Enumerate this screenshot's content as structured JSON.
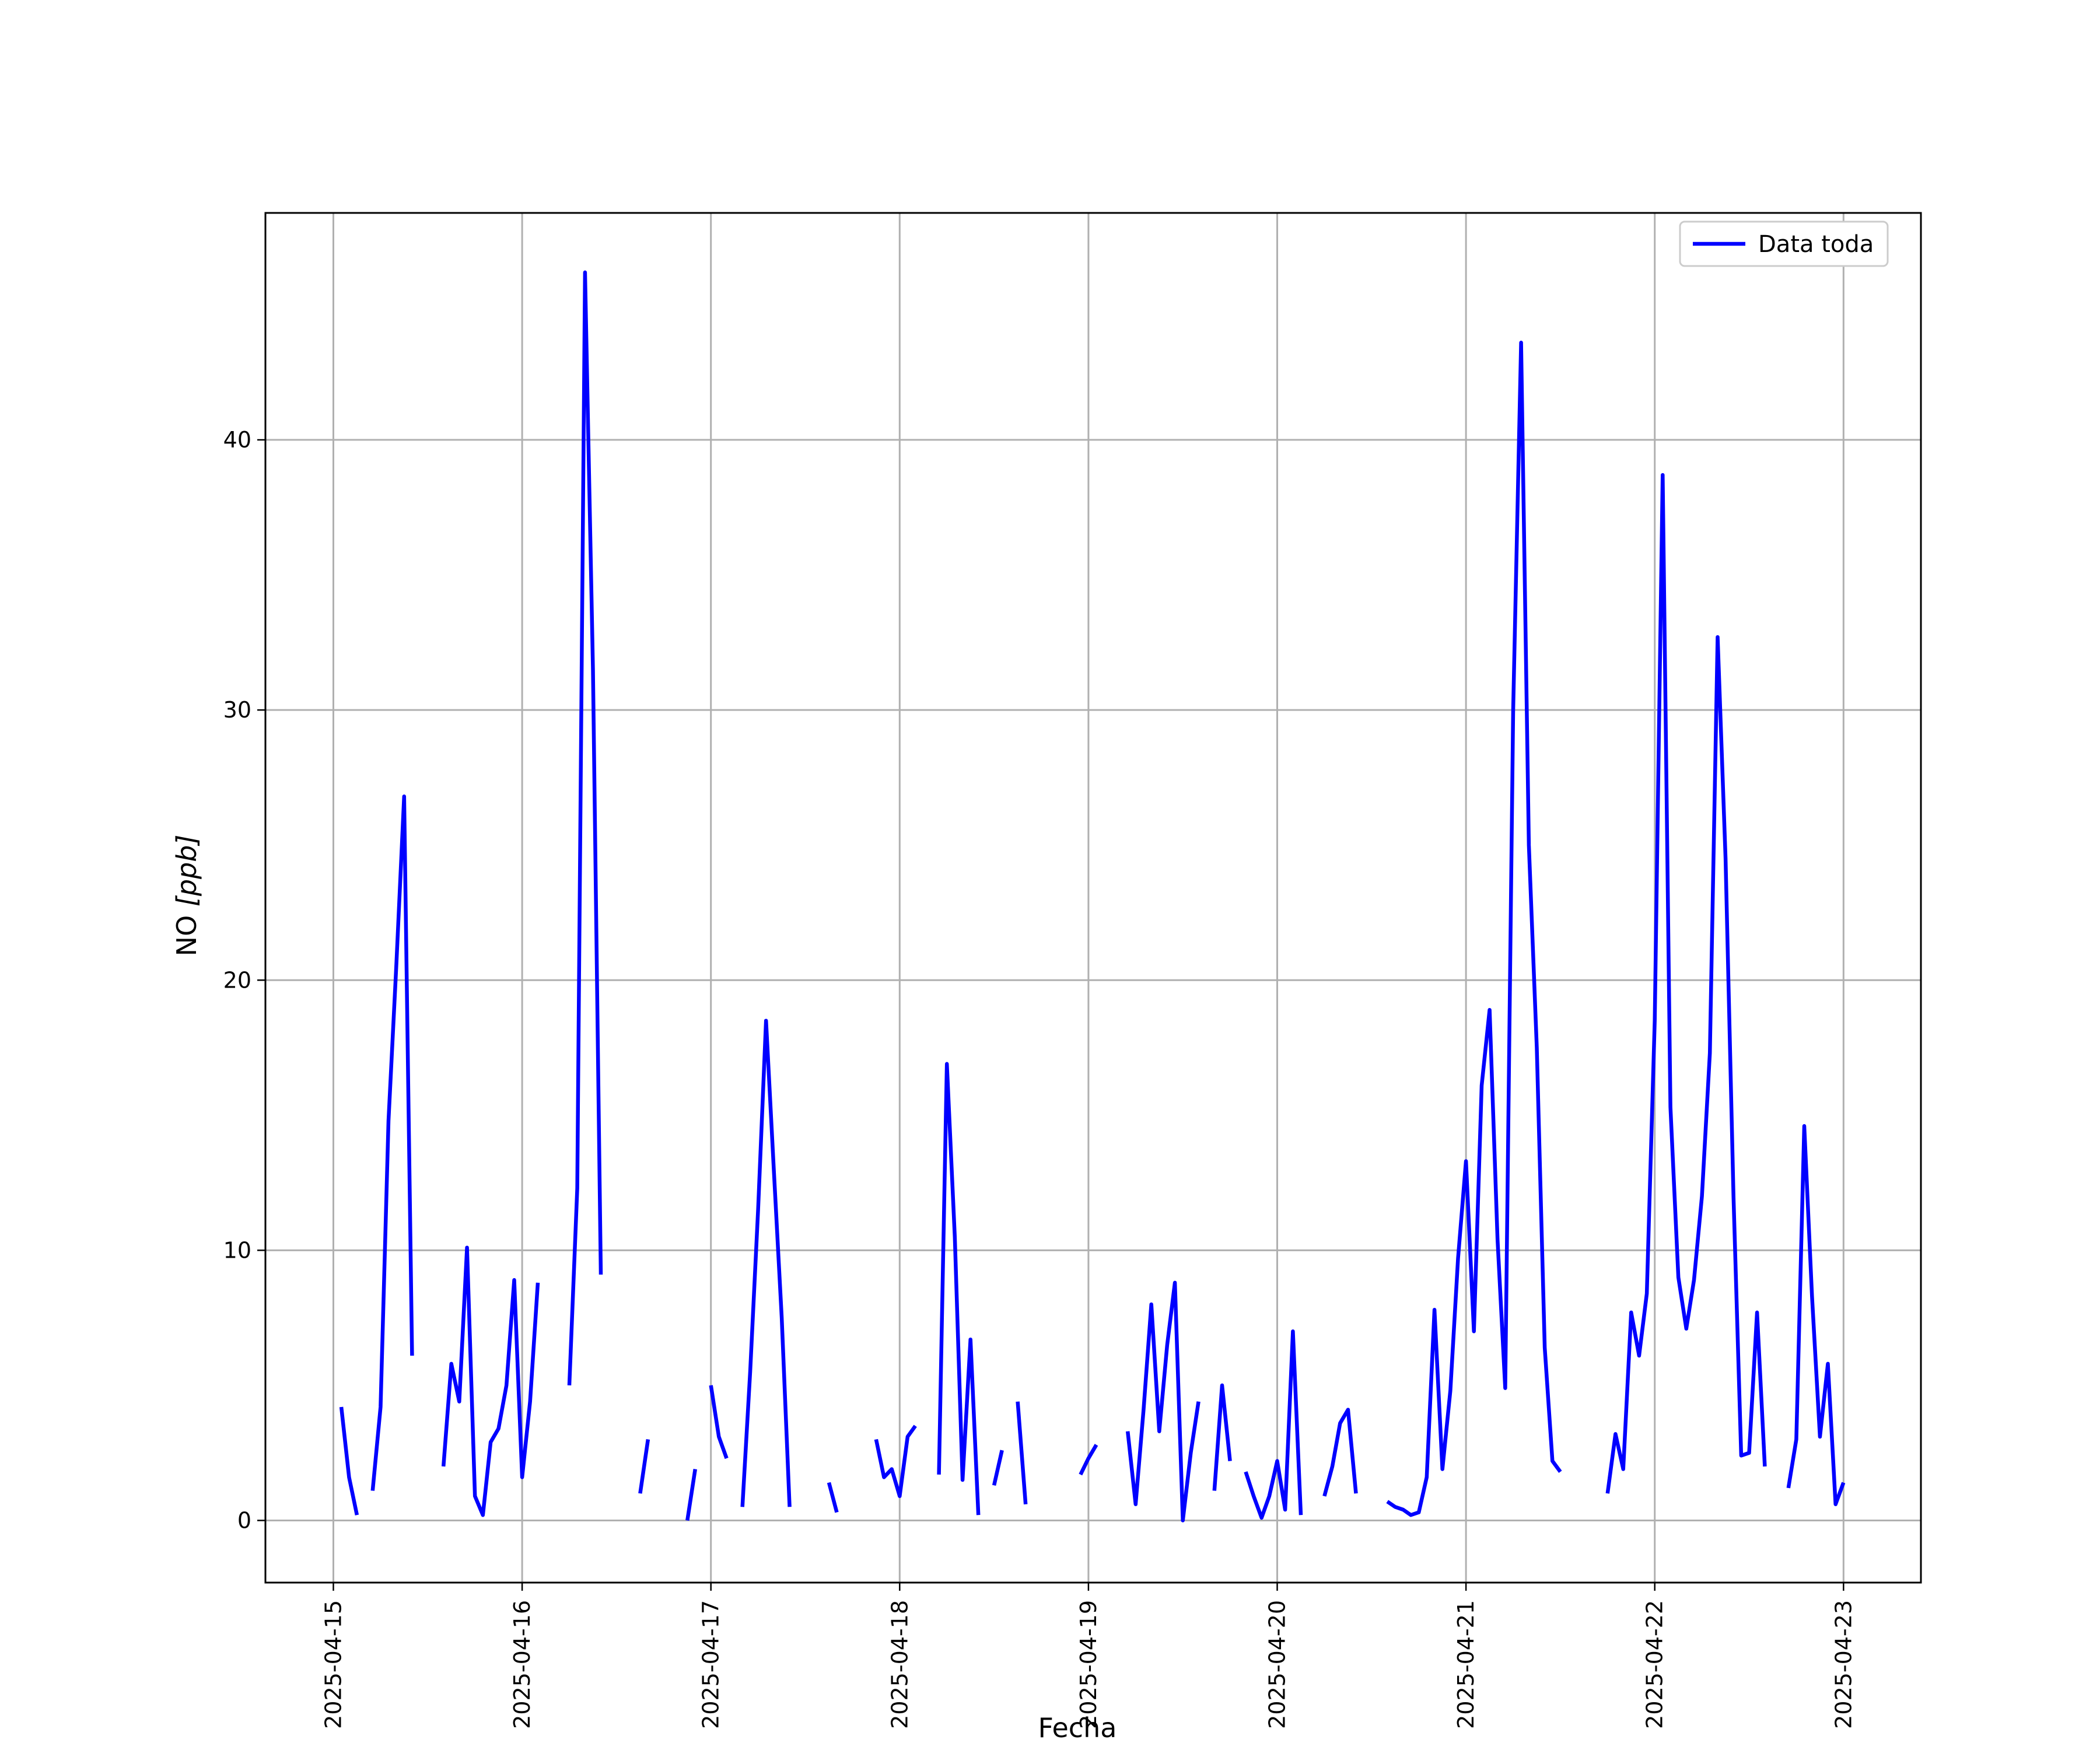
{
  "chart_data": {
    "type": "line",
    "title": "",
    "xlabel": "Fecha",
    "ylabel_main": "NO ",
    "ylabel_unit": "[ppb]",
    "x_ticks": [
      "2025-04-15",
      "2025-04-16",
      "2025-04-17",
      "2025-04-18",
      "2025-04-19",
      "2025-04-20",
      "2025-04-21",
      "2025-04-22",
      "2025-04-23"
    ],
    "y_ticks": [
      0,
      10,
      20,
      30,
      40
    ],
    "xlim_days": [
      -0.36,
      8.41
    ],
    "ylim": [
      -2.3,
      48.4
    ],
    "grid": true,
    "legend_position": "top-right",
    "colors": {
      "series": "#0000ff",
      "grid": "#b0b0b0",
      "axes": "#000000"
    },
    "series": [
      {
        "name": "Data toda",
        "segments": [
          [
            [
              0.042,
              4.2
            ],
            [
              0.083,
              1.6
            ],
            [
              0.125,
              0.2
            ]
          ],
          [
            [
              0.208,
              1.1
            ],
            [
              0.25,
              4.2
            ],
            [
              0.292,
              14.8
            ],
            [
              0.333,
              20.5
            ],
            [
              0.375,
              26.8
            ],
            [
              0.417,
              6.1
            ]
          ],
          [
            [
              0.583,
              2.0
            ],
            [
              0.625,
              5.8
            ],
            [
              0.667,
              4.4
            ],
            [
              0.708,
              10.1
            ],
            [
              0.75,
              0.9
            ],
            [
              0.792,
              0.2
            ],
            [
              0.833,
              2.9
            ],
            [
              0.875,
              3.4
            ],
            [
              0.917,
              5.0
            ],
            [
              0.958,
              8.9
            ],
            [
              1.0,
              1.6
            ],
            [
              1.042,
              4.4
            ],
            [
              1.083,
              8.8
            ]
          ],
          [
            [
              1.25,
              5.0
            ],
            [
              1.292,
              12.3
            ],
            [
              1.333,
              46.2
            ],
            [
              1.375,
              31.5
            ],
            [
              1.417,
              9.1
            ]
          ],
          [
            [
              1.625,
              1.0
            ],
            [
              1.667,
              3.0
            ]
          ],
          [
            [
              1.875,
              0.0
            ],
            [
              1.917,
              1.9
            ]
          ],
          [
            [
              2.0,
              5.0
            ],
            [
              2.042,
              3.1
            ],
            [
              2.083,
              2.3
            ]
          ],
          [
            [
              2.167,
              0.5
            ],
            [
              2.208,
              5.5
            ],
            [
              2.25,
              11.5
            ],
            [
              2.292,
              18.5
            ],
            [
              2.333,
              13.0
            ],
            [
              2.375,
              7.5
            ],
            [
              2.417,
              0.5
            ]
          ],
          [
            [
              2.625,
              1.4
            ],
            [
              2.667,
              0.3
            ]
          ],
          [
            [
              2.875,
              3.0
            ],
            [
              2.917,
              1.6
            ],
            [
              2.958,
              1.9
            ],
            [
              3.0,
              0.9
            ],
            [
              3.042,
              3.1
            ],
            [
              3.083,
              3.5
            ]
          ],
          [
            [
              3.208,
              1.7
            ],
            [
              3.25,
              16.9
            ],
            [
              3.292,
              10.5
            ],
            [
              3.333,
              1.5
            ],
            [
              3.375,
              6.7
            ],
            [
              3.417,
              0.2
            ]
          ],
          [
            [
              3.5,
              1.3
            ],
            [
              3.542,
              2.6
            ]
          ],
          [
            [
              3.625,
              4.4
            ],
            [
              3.667,
              0.6
            ]
          ],
          [
            [
              3.958,
              1.7
            ],
            [
              4.0,
              2.3
            ],
            [
              4.042,
              2.8
            ]
          ],
          [
            [
              4.208,
              3.3
            ],
            [
              4.25,
              0.6
            ],
            [
              4.292,
              4.1
            ],
            [
              4.333,
              8.0
            ],
            [
              4.375,
              3.3
            ],
            [
              4.417,
              6.5
            ],
            [
              4.458,
              8.8
            ],
            [
              4.5,
              0.0
            ],
            [
              4.542,
              2.5
            ],
            [
              4.583,
              4.4
            ]
          ],
          [
            [
              4.667,
              1.1
            ],
            [
              4.708,
              5.0
            ],
            [
              4.75,
              2.2
            ]
          ],
          [
            [
              4.833,
              1.8
            ],
            [
              4.875,
              0.9
            ],
            [
              4.917,
              0.1
            ],
            [
              4.958,
              0.9
            ],
            [
              5.0,
              2.2
            ],
            [
              5.042,
              0.4
            ],
            [
              5.083,
              7.0
            ],
            [
              5.125,
              0.2
            ]
          ],
          [
            [
              5.25,
              0.9
            ],
            [
              5.292,
              2.0
            ],
            [
              5.333,
              3.6
            ],
            [
              5.375,
              4.1
            ],
            [
              5.417,
              1.0
            ]
          ],
          [
            [
              5.583,
              0.7
            ],
            [
              5.625,
              0.5
            ],
            [
              5.667,
              0.4
            ],
            [
              5.708,
              0.2
            ],
            [
              5.75,
              0.3
            ],
            [
              5.792,
              1.6
            ],
            [
              5.833,
              7.8
            ],
            [
              5.875,
              1.9
            ],
            [
              5.917,
              4.8
            ],
            [
              5.958,
              9.7
            ],
            [
              6.0,
              13.3
            ],
            [
              6.042,
              7.0
            ],
            [
              6.083,
              16.1
            ],
            [
              6.125,
              18.9
            ],
            [
              6.167,
              10.4
            ],
            [
              6.208,
              4.9
            ],
            [
              6.25,
              30.0
            ],
            [
              6.292,
              43.6
            ],
            [
              6.333,
              25.0
            ],
            [
              6.375,
              17.5
            ],
            [
              6.417,
              6.4
            ],
            [
              6.458,
              2.2
            ],
            [
              6.5,
              1.8
            ]
          ],
          [
            [
              6.75,
              1.0
            ],
            [
              6.792,
              3.2
            ],
            [
              6.833,
              1.9
            ],
            [
              6.875,
              7.7
            ],
            [
              6.917,
              6.1
            ],
            [
              6.958,
              8.4
            ],
            [
              7.0,
              18.5
            ],
            [
              7.042,
              38.7
            ],
            [
              7.083,
              15.3
            ],
            [
              7.125,
              9.0
            ],
            [
              7.167,
              7.1
            ],
            [
              7.208,
              8.9
            ],
            [
              7.25,
              12.0
            ],
            [
              7.292,
              17.3
            ],
            [
              7.333,
              32.7
            ],
            [
              7.375,
              24.5
            ],
            [
              7.417,
              12.0
            ],
            [
              7.458,
              2.4
            ],
            [
              7.5,
              2.5
            ],
            [
              7.542,
              7.7
            ],
            [
              7.583,
              2.0
            ]
          ],
          [
            [
              7.708,
              1.2
            ],
            [
              7.75,
              3.0
            ],
            [
              7.792,
              14.6
            ],
            [
              7.833,
              8.3
            ],
            [
              7.875,
              3.1
            ],
            [
              7.917,
              5.8
            ],
            [
              7.958,
              0.6
            ],
            [
              8.0,
              1.4
            ]
          ]
        ]
      }
    ]
  }
}
